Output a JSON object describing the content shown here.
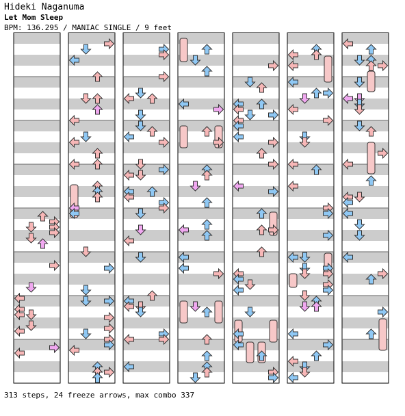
{
  "header": {
    "artist": "Hideki Naganuma",
    "title": "Let Mom Sleep",
    "meta": "BPM: 136.295 / MANIAC SINGLE / 9 feet"
  },
  "footer": {
    "summary": "313 steps, 24 freeze arrows, max combo 337"
  },
  "colors": {
    "quarter_note": "#f7b7b7",
    "eighth_note": "#8fc8f4",
    "sixteenth_note": "#f0a8f0",
    "freeze_body": "#f7c8c8",
    "row_shade": "#cccccc"
  },
  "chart_data": {
    "type": "step-chart",
    "columns": 7,
    "lanes": [
      "left",
      "down",
      "up",
      "right"
    ],
    "measures_per_column": 8,
    "rows_per_measure": 4,
    "total_steps": 313,
    "freeze_arrows": 24,
    "max_combo": 337
  }
}
